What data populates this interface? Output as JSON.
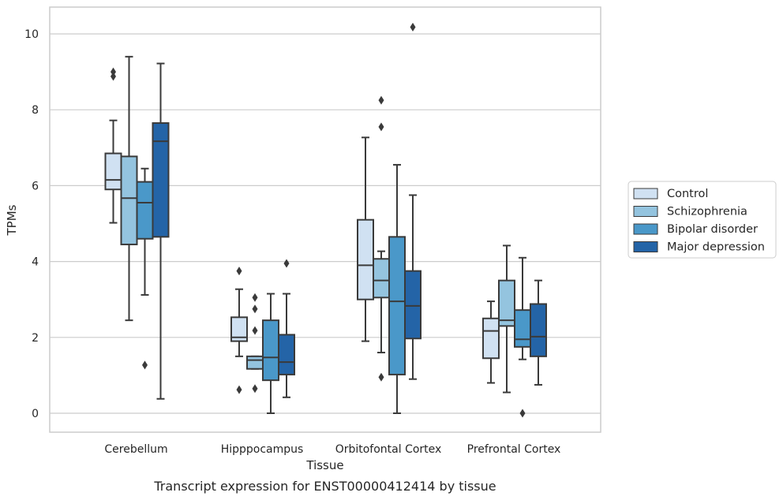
{
  "caption": "Transcript expression for ENST00000412414 by tissue",
  "chart_data": {
    "type": "box",
    "xlabel": "Tissue",
    "ylabel": "TPMs",
    "ylim": [
      -0.5,
      10.7
    ],
    "yticks": [
      0,
      2,
      4,
      6,
      8,
      10
    ],
    "grid": true,
    "legend_position": "right",
    "categories": [
      "Cerebellum",
      "Hipppocampus",
      "Orbitofontal Cortex",
      "Prefrontal Cortex"
    ],
    "series": [
      {
        "name": "Control",
        "color": "#d0e1f2",
        "boxes": [
          {
            "q1": 5.9,
            "median": 6.15,
            "q3": 6.85,
            "whisker_low": 5.02,
            "whisker_high": 7.72,
            "outliers": [
              8.88,
              9.0
            ]
          },
          {
            "q1": 1.9,
            "median": 2.0,
            "q3": 2.53,
            "whisker_low": 1.5,
            "whisker_high": 3.27,
            "outliers": [
              3.75,
              0.62
            ]
          },
          {
            "q1": 3.0,
            "median": 3.9,
            "q3": 5.1,
            "whisker_low": 1.9,
            "whisker_high": 7.27,
            "outliers": []
          },
          {
            "q1": 1.45,
            "median": 2.17,
            "q3": 2.5,
            "whisker_low": 0.8,
            "whisker_high": 2.95,
            "outliers": []
          }
        ]
      },
      {
        "name": "Schizophrenia",
        "color": "#94c4df",
        "boxes": [
          {
            "q1": 4.45,
            "median": 5.67,
            "q3": 6.77,
            "whisker_low": 2.45,
            "whisker_high": 9.4,
            "outliers": []
          },
          {
            "q1": 1.17,
            "median": 1.4,
            "q3": 1.5,
            "whisker_low": 1.17,
            "whisker_high": 1.5,
            "outliers": [
              3.05,
              2.75,
              2.18,
              0.65
            ]
          },
          {
            "q1": 3.05,
            "median": 3.5,
            "q3": 4.07,
            "whisker_low": 1.6,
            "whisker_high": 4.27,
            "outliers": [
              8.25,
              7.55,
              0.95
            ]
          },
          {
            "q1": 2.3,
            "median": 2.45,
            "q3": 3.5,
            "whisker_low": 0.55,
            "whisker_high": 4.42,
            "outliers": []
          }
        ]
      },
      {
        "name": "Bipolar disorder",
        "color": "#4a98c9",
        "boxes": [
          {
            "q1": 4.6,
            "median": 5.55,
            "q3": 6.1,
            "whisker_low": 3.12,
            "whisker_high": 6.45,
            "outliers": [
              1.27
            ]
          },
          {
            "q1": 0.87,
            "median": 1.47,
            "q3": 2.45,
            "whisker_low": 0.0,
            "whisker_high": 3.15,
            "outliers": []
          },
          {
            "q1": 1.02,
            "median": 2.95,
            "q3": 4.65,
            "whisker_low": 0.0,
            "whisker_high": 6.55,
            "outliers": []
          },
          {
            "q1": 1.75,
            "median": 1.95,
            "q3": 2.72,
            "whisker_low": 1.42,
            "whisker_high": 4.1,
            "outliers": [
              0.0
            ]
          }
        ]
      },
      {
        "name": "Major depression",
        "color": "#2464a7",
        "boxes": [
          {
            "q1": 4.65,
            "median": 7.17,
            "q3": 7.65,
            "whisker_low": 0.38,
            "whisker_high": 9.22,
            "outliers": []
          },
          {
            "q1": 1.02,
            "median": 1.35,
            "q3": 2.07,
            "whisker_low": 0.42,
            "whisker_high": 3.15,
            "outliers": [
              3.95
            ]
          },
          {
            "q1": 1.97,
            "median": 2.83,
            "q3": 3.75,
            "whisker_low": 0.9,
            "whisker_high": 5.75,
            "outliers": [
              10.18
            ]
          },
          {
            "q1": 1.5,
            "median": 2.02,
            "q3": 2.88,
            "whisker_low": 0.75,
            "whisker_high": 3.5,
            "outliers": []
          }
        ]
      }
    ]
  }
}
